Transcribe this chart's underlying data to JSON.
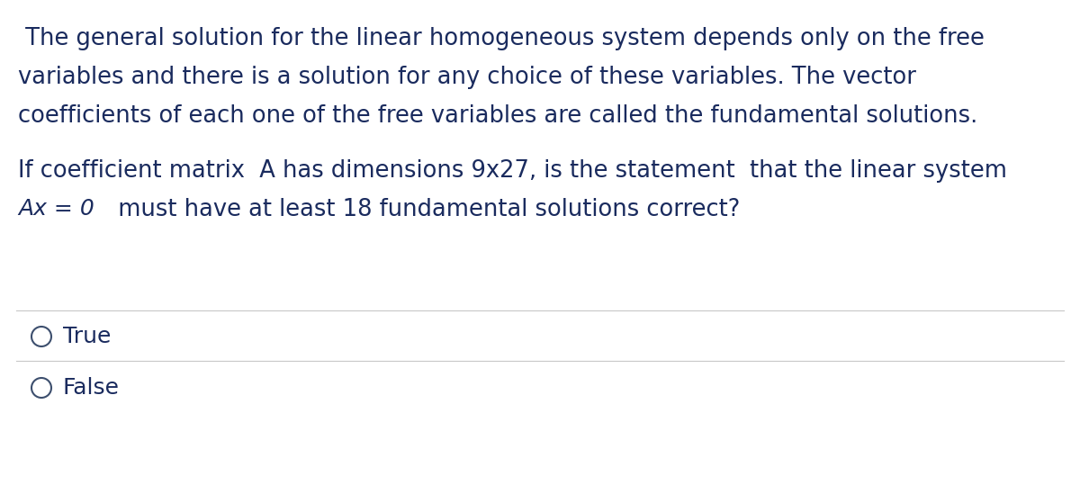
{
  "background_color": "#ffffff",
  "text_color": "#1a2b5e",
  "paragraph1_lines": [
    " The general solution for the linear homogeneous system depends only on the free",
    "variables and there is a solution for any choice of these variables. The vector",
    "coefficients of each one of the free variables are called the fundamental solutions."
  ],
  "paragraph2_line1": "If coefficient matrix  A has dimensions 9x27, is the statement  that the linear system",
  "paragraph2_line2_prefix": "Ax = 0",
  "paragraph2_line2_suffix": "  must have at least 18 fundamental solutions correct?",
  "options": [
    "True",
    "False"
  ],
  "font_size_main": 18.5,
  "font_size_options": 18.0,
  "line_color": "#c8c8c8",
  "circle_color": "#3d4f6e",
  "fig_width": 12.0,
  "fig_height": 5.59,
  "dpi": 100
}
